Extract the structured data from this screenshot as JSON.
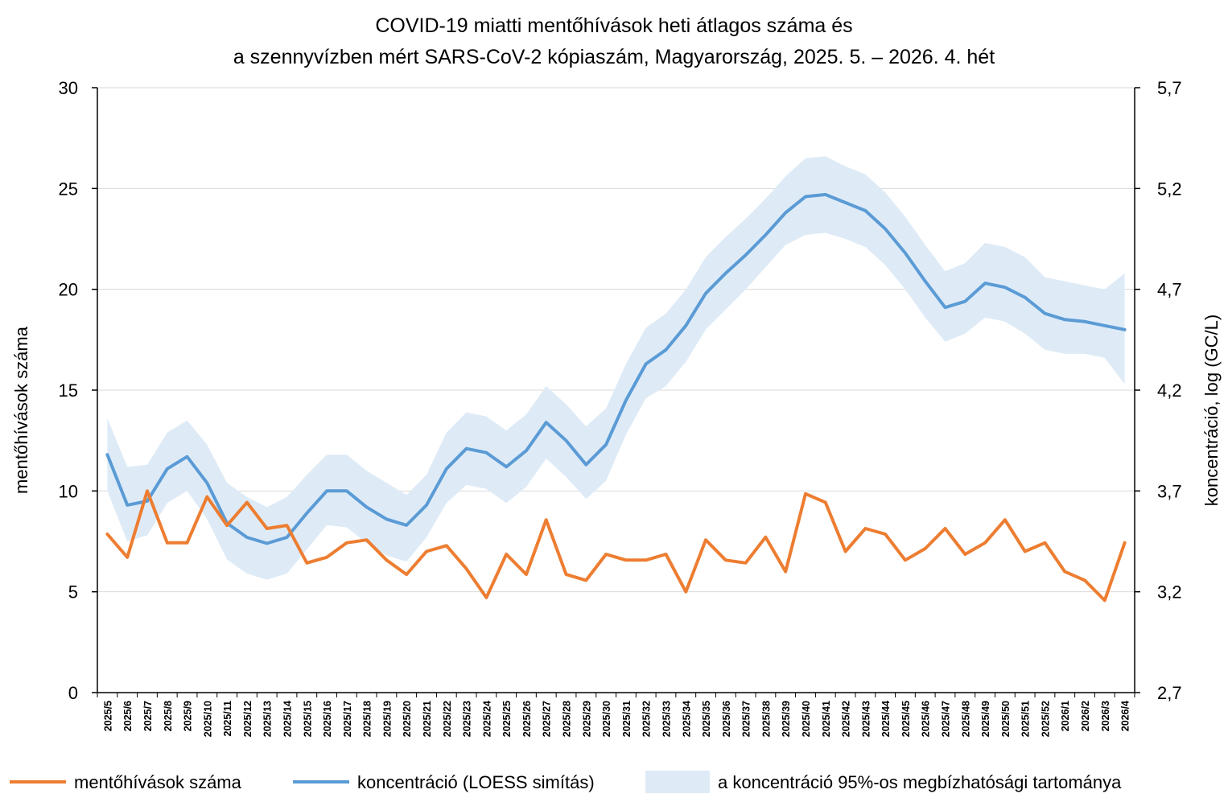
{
  "chart_data": {
    "type": "line",
    "title_lines": [
      "COVID-19 miatti mentőhívások heti átlagos száma és",
      "a szennyvízben mért SARS-CoV-2 kópiaszám, Magyarország, 2025. 5. – 2026. 4. hét"
    ],
    "ylabel_left": "mentőhívások száma",
    "ylabel_right": "koncentráció,  log (GC/L)",
    "ylim_left": [
      0,
      30
    ],
    "ylim_right": [
      2.7,
      5.7
    ],
    "yticks_left": [
      "0",
      "5",
      "10",
      "15",
      "20",
      "25",
      "30"
    ],
    "yticks_right": [
      "2,7",
      "3,2",
      "3,7",
      "4,2",
      "4,7",
      "5,2",
      "5,7"
    ],
    "grid": true,
    "categories": [
      "2025/5",
      "2025/6",
      "2025/7",
      "2025/8",
      "2025/9",
      "2025/10",
      "2025/11",
      "2025/12",
      "2025/13",
      "2025/14",
      "2025/15",
      "2025/16",
      "2025/17",
      "2025/18",
      "2025/19",
      "2025/20",
      "2025/21",
      "2025/22",
      "2025/23",
      "2025/24",
      "2025/25",
      "2025/26",
      "2025/27",
      "2025/28",
      "2025/29",
      "2025/30",
      "2025/31",
      "2025/32",
      "2025/33",
      "2025/34",
      "2025/35",
      "2025/36",
      "2025/37",
      "2025/38",
      "2025/39",
      "2025/40",
      "2025/41",
      "2025/42",
      "2025/43",
      "2025/44",
      "2025/45",
      "2025/46",
      "2025/47",
      "2025/48",
      "2025/49",
      "2025/50",
      "2025/51",
      "2025/52",
      "2026/1",
      "2026/2",
      "2026/3",
      "2026/4"
    ],
    "series": [
      {
        "name": "mentőhívások száma",
        "axis": "left",
        "color": "#ed7d31",
        "values": [
          7.86,
          6.71,
          10.0,
          7.43,
          7.43,
          9.71,
          8.29,
          9.43,
          8.14,
          8.29,
          6.43,
          6.71,
          7.43,
          7.57,
          6.57,
          5.86,
          7.0,
          7.29,
          6.14,
          4.71,
          6.86,
          5.86,
          8.57,
          5.86,
          5.57,
          6.86,
          6.57,
          6.57,
          6.86,
          5.0,
          7.57,
          6.57,
          6.43,
          7.71,
          6.0,
          9.86,
          9.43,
          7.0,
          8.14,
          7.86,
          6.57,
          7.14,
          8.14,
          6.86,
          7.43,
          8.57,
          7.0,
          7.43,
          6.0,
          5.57,
          4.57,
          7.43
        ]
      },
      {
        "name": "koncentráció (LOESS simítás)",
        "axis": "right",
        "color": "#5b9bd5",
        "values": [
          3.88,
          3.63,
          3.65,
          3.81,
          3.87,
          3.74,
          3.54,
          3.47,
          3.44,
          3.47,
          3.59,
          3.7,
          3.7,
          3.62,
          3.56,
          3.53,
          3.63,
          3.81,
          3.91,
          3.89,
          3.82,
          3.9,
          4.04,
          3.95,
          3.83,
          3.93,
          4.15,
          4.33,
          4.4,
          4.52,
          4.68,
          4.78,
          4.87,
          4.97,
          5.08,
          5.16,
          5.17,
          5.13,
          5.09,
          5.0,
          4.88,
          4.74,
          4.61,
          4.64,
          4.73,
          4.71,
          4.66,
          4.58,
          4.55,
          4.54,
          4.52,
          4.5
        ]
      }
    ],
    "band": {
      "name": "a koncentráció 95%-os megbízhatósági tartománya",
      "axis": "right",
      "color": "#deebf7",
      "upper": [
        4.06,
        3.82,
        3.83,
        3.99,
        4.05,
        3.93,
        3.74,
        3.67,
        3.62,
        3.67,
        3.78,
        3.88,
        3.88,
        3.8,
        3.74,
        3.68,
        3.78,
        3.99,
        4.09,
        4.07,
        4.0,
        4.08,
        4.22,
        4.13,
        4.02,
        4.11,
        4.33,
        4.51,
        4.58,
        4.7,
        4.86,
        4.96,
        5.05,
        5.15,
        5.26,
        5.35,
        5.36,
        5.31,
        5.27,
        5.18,
        5.06,
        4.92,
        4.79,
        4.83,
        4.93,
        4.91,
        4.86,
        4.76,
        4.74,
        4.72,
        4.7,
        4.78
      ],
      "lower": [
        3.7,
        3.45,
        3.48,
        3.64,
        3.7,
        3.56,
        3.36,
        3.29,
        3.26,
        3.29,
        3.41,
        3.53,
        3.52,
        3.44,
        3.38,
        3.35,
        3.47,
        3.64,
        3.73,
        3.71,
        3.64,
        3.72,
        3.86,
        3.77,
        3.66,
        3.75,
        3.98,
        4.16,
        4.22,
        4.34,
        4.5,
        4.6,
        4.7,
        4.81,
        4.92,
        4.97,
        4.98,
        4.95,
        4.91,
        4.82,
        4.7,
        4.56,
        4.44,
        4.48,
        4.56,
        4.54,
        4.48,
        4.4,
        4.38,
        4.38,
        4.36,
        4.23
      ]
    },
    "legend": [
      {
        "label": "mentőhívások száma",
        "kind": "line",
        "color": "#ed7d31"
      },
      {
        "label": "koncentráció (LOESS simítás)",
        "kind": "line",
        "color": "#5b9bd5"
      },
      {
        "label": "a koncentráció 95%-os megbízhatósági tartománya",
        "kind": "band",
        "color": "#deebf7"
      }
    ],
    "legend_position": "bottom"
  }
}
